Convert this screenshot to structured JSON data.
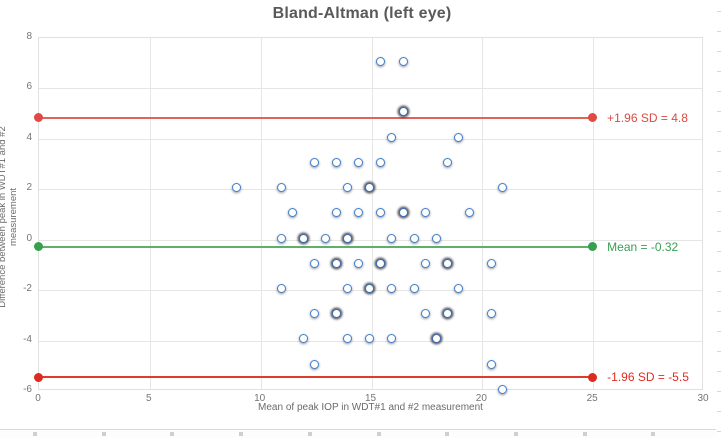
{
  "chart_data": {
    "type": "scatter",
    "title": "Bland-Altman (left eye)",
    "xlabel": "Mean of peak IOP in WDT#1 and #2 measurement",
    "ylabel": "Difference between peak in WDT#1 and #2 measurement",
    "xlim": [
      0,
      30
    ],
    "ylim": [
      -6,
      8
    ],
    "x_ticks": [
      0,
      5,
      10,
      15,
      20,
      25,
      30
    ],
    "y_ticks": [
      8,
      6,
      4,
      2,
      0,
      -2,
      -4,
      -6
    ],
    "grid": true,
    "legend_position": "none",
    "marker_color": "#4080cc",
    "reference_lines": [
      {
        "name": "upper-loa",
        "label": "+1.96 SD = 4.8",
        "value": 4.8,
        "x_start": 0,
        "x_end": 25,
        "line_color": "#e0635c",
        "dot_color": "#e04a42",
        "label_color": "#d94b44"
      },
      {
        "name": "mean",
        "label": "Mean = -0.32",
        "value": -0.32,
        "x_start": 0,
        "x_end": 25,
        "line_color": "#5fae69",
        "dot_color": "#35a04e",
        "label_color": "#389e53"
      },
      {
        "name": "lower-loa",
        "label": "-1.96 SD = -5.5",
        "value": -5.5,
        "x_start": 0,
        "x_end": 25,
        "line_color": "#e03a30",
        "dot_color": "#dd2c1f",
        "label_color": "#e02b1d"
      }
    ],
    "points": [
      {
        "x": 15.5,
        "y": 7
      },
      {
        "x": 16.5,
        "y": 7
      },
      {
        "x": 16.5,
        "y": 5,
        "bold": true
      },
      {
        "x": 16,
        "y": 4
      },
      {
        "x": 19,
        "y": 4
      },
      {
        "x": 12.5,
        "y": 3
      },
      {
        "x": 13.5,
        "y": 3
      },
      {
        "x": 14.5,
        "y": 3
      },
      {
        "x": 15.5,
        "y": 3
      },
      {
        "x": 18.5,
        "y": 3
      },
      {
        "x": 9,
        "y": 2
      },
      {
        "x": 11,
        "y": 2
      },
      {
        "x": 14,
        "y": 2
      },
      {
        "x": 15,
        "y": 2,
        "bold": true
      },
      {
        "x": 21,
        "y": 2
      },
      {
        "x": 11.5,
        "y": 1
      },
      {
        "x": 13.5,
        "y": 1
      },
      {
        "x": 14.5,
        "y": 1
      },
      {
        "x": 15.5,
        "y": 1
      },
      {
        "x": 16.5,
        "y": 1,
        "bold": true
      },
      {
        "x": 17.5,
        "y": 1
      },
      {
        "x": 19.5,
        "y": 1
      },
      {
        "x": 11,
        "y": 0
      },
      {
        "x": 12,
        "y": 0,
        "bold": true
      },
      {
        "x": 13,
        "y": 0
      },
      {
        "x": 14,
        "y": 0,
        "bold": true
      },
      {
        "x": 16,
        "y": 0
      },
      {
        "x": 17,
        "y": 0
      },
      {
        "x": 18,
        "y": 0
      },
      {
        "x": 12.5,
        "y": -1
      },
      {
        "x": 13.5,
        "y": -1,
        "bold": true
      },
      {
        "x": 14.5,
        "y": -1
      },
      {
        "x": 15.5,
        "y": -1,
        "bold": true
      },
      {
        "x": 17.5,
        "y": -1
      },
      {
        "x": 18.5,
        "y": -1,
        "bold": true
      },
      {
        "x": 20.5,
        "y": -1
      },
      {
        "x": 11,
        "y": -2
      },
      {
        "x": 14,
        "y": -2
      },
      {
        "x": 15,
        "y": -2,
        "bold": true
      },
      {
        "x": 16,
        "y": -2
      },
      {
        "x": 17,
        "y": -2
      },
      {
        "x": 19,
        "y": -2
      },
      {
        "x": 12.5,
        "y": -3
      },
      {
        "x": 13.5,
        "y": -3,
        "bold": true
      },
      {
        "x": 17.5,
        "y": -3
      },
      {
        "x": 18.5,
        "y": -3,
        "bold": true
      },
      {
        "x": 20.5,
        "y": -3
      },
      {
        "x": 12,
        "y": -4
      },
      {
        "x": 14,
        "y": -4
      },
      {
        "x": 15,
        "y": -4
      },
      {
        "x": 16,
        "y": -4
      },
      {
        "x": 18,
        "y": -4,
        "bold": true
      },
      {
        "x": 12.5,
        "y": -5
      },
      {
        "x": 20.5,
        "y": -5
      },
      {
        "x": 21,
        "y": -6
      }
    ]
  }
}
